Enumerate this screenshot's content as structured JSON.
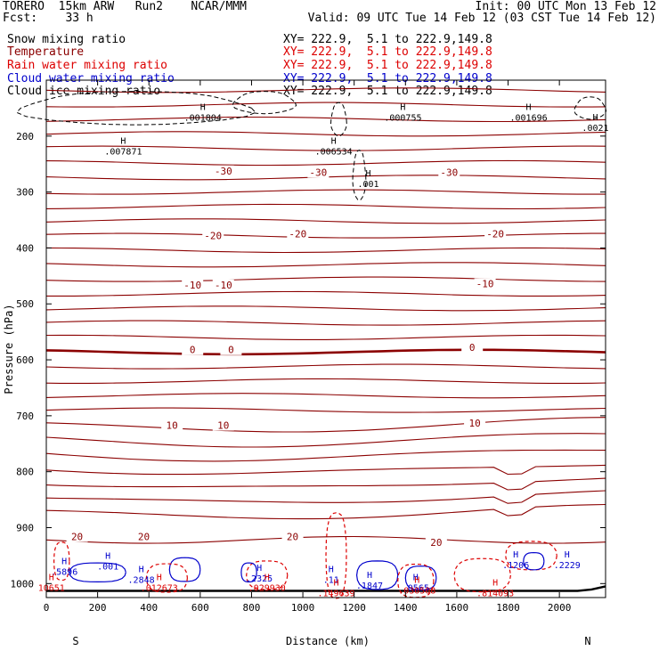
{
  "header": {
    "left1": "TORERO  15km ARW   Run2    NCAR/MMM",
    "left2": "Fcst:    33 h",
    "right1": "Init: 00 UTC Mon 13 Feb 12",
    "right2": "Valid: 09 UTC Tue 14 Feb 12 (03 CST Tue 14 Feb 12)"
  },
  "legend": [
    {
      "label": "Snow mixing ratio",
      "color": "#000000",
      "xy": "XY= 222.9,  5.1 to 222.9,149.8"
    },
    {
      "label": "Temperature",
      "color": "#8b0000",
      "xy": "XY= 222.9,  5.1 to 222.9,149.8"
    },
    {
      "label": "Rain water mixing ratio",
      "color": "#dd0000",
      "xy": "XY= 222.9,  5.1 to 222.9,149.8"
    },
    {
      "label": "Cloud water mixing ratio",
      "color": "#0000cc",
      "xy": "XY= 222.9,  5.1 to 222.9,149.8"
    },
    {
      "label": "Cloud ice mixing ratio",
      "color": "#000000",
      "xy": "XY= 222.9,  5.1 to 222.9,149.8"
    }
  ],
  "chart_data": {
    "type": "line",
    "xlabel": "Distance (km)",
    "ylabel": "Pressure (hPa)",
    "xlim": [
      0,
      2180
    ],
    "ylim": [
      1025,
      100
    ],
    "x_ticks": [
      0,
      200,
      400,
      600,
      800,
      1000,
      1200,
      1400,
      1600,
      1800,
      2000
    ],
    "y_ticks": [
      200,
      300,
      400,
      500,
      600,
      700,
      800,
      900,
      1000
    ],
    "x_end_labels": {
      "left": "S",
      "right": "N"
    },
    "temperature_labels": [
      {
        "text": "-30",
        "x": 690,
        "p": 262
      },
      {
        "text": "-30",
        "x": 1060,
        "p": 265
      },
      {
        "text": "-30",
        "x": 1570,
        "p": 265
      },
      {
        "text": "-20",
        "x": 650,
        "p": 378
      },
      {
        "text": "-20",
        "x": 980,
        "p": 375
      },
      {
        "text": "-20",
        "x": 1750,
        "p": 375
      },
      {
        "text": "-10",
        "x": 570,
        "p": 466
      },
      {
        "text": "-10",
        "x": 690,
        "p": 466
      },
      {
        "text": "-10",
        "x": 1710,
        "p": 464
      },
      {
        "text": "0",
        "x": 570,
        "p": 582
      },
      {
        "text": "0",
        "x": 720,
        "p": 582
      },
      {
        "text": "0",
        "x": 1660,
        "p": 578
      },
      {
        "text": "10",
        "x": 490,
        "p": 717
      },
      {
        "text": "10",
        "x": 690,
        "p": 717
      },
      {
        "text": "10",
        "x": 1670,
        "p": 713
      },
      {
        "text": "20",
        "x": 120,
        "p": 916
      },
      {
        "text": "20",
        "x": 380,
        "p": 916
      },
      {
        "text": "20",
        "x": 960,
        "p": 916
      },
      {
        "text": "20",
        "x": 1520,
        "p": 926
      }
    ],
    "maxima_labels": [
      {
        "text": ".001804",
        "x": 610,
        "p": 160,
        "color": "#000000"
      },
      {
        "text": ".000755",
        "x": 1390,
        "p": 160,
        "color": "#000000"
      },
      {
        "text": ".001696",
        "x": 1880,
        "p": 160,
        "color": "#000000"
      },
      {
        "text": ".0021",
        "x": 2140,
        "p": 178,
        "color": "#000000"
      },
      {
        "text": ".007871",
        "x": 300,
        "p": 220,
        "color": "#000000"
      },
      {
        "text": ".006534",
        "x": 1120,
        "p": 220,
        "color": "#000000"
      },
      {
        "text": ".001",
        "x": 1255,
        "p": 278,
        "color": "#000000"
      },
      {
        "text": ".5896",
        "x": 70,
        "p": 972,
        "color": "#0000cc"
      },
      {
        "text": ".001",
        "x": 240,
        "p": 962,
        "color": "#0000cc"
      },
      {
        "text": ".2848",
        "x": 370,
        "p": 986,
        "color": "#0000cc"
      },
      {
        "text": ".2325",
        "x": 830,
        "p": 984,
        "color": "#0000cc"
      },
      {
        "text": ".11",
        "x": 1110,
        "p": 986,
        "color": "#0000cc"
      },
      {
        "text": ".1847",
        "x": 1260,
        "p": 996,
        "color": "#0000cc"
      },
      {
        "text": ".0565",
        "x": 1440,
        "p": 1000,
        "color": "#0000cc"
      },
      {
        "text": ".1206",
        "x": 1830,
        "p": 960,
        "color": "#0000cc"
      },
      {
        "text": ".2229",
        "x": 2030,
        "p": 960,
        "color": "#0000cc"
      },
      {
        "text": ".012673",
        "x": 440,
        "p": 1000,
        "color": "#dd0000"
      },
      {
        "text": ".029930",
        "x": 860,
        "p": 1000,
        "color": "#dd0000"
      },
      {
        "text": ".149639",
        "x": 1130,
        "p": 1010,
        "color": "#dd0000"
      },
      {
        "text": ".030508",
        "x": 1445,
        "p": 1005,
        "color": "#dd0000"
      },
      {
        "text": ".814093",
        "x": 1750,
        "p": 1010,
        "color": "#dd0000"
      },
      {
        "text": "10651",
        "x": 20,
        "p": 1000,
        "color": "#dd0000"
      }
    ],
    "grid": false
  },
  "colors": {
    "temperature": "#8b0000",
    "rain": "#dd0000",
    "cloud_water": "#0000cc",
    "snow": "#000000",
    "ice": "#000000"
  }
}
